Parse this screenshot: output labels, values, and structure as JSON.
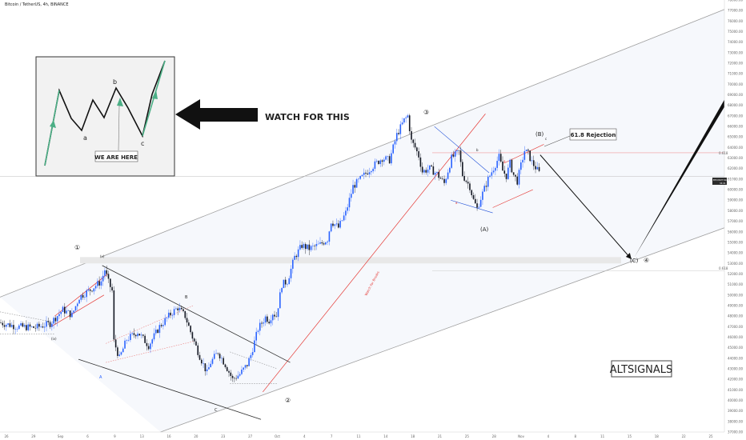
{
  "header": {
    "symbol_title": "Bitcoin / TetherUS, 4h, BINANCE"
  },
  "callout": {
    "text": "WATCH FOR THIS"
  },
  "inset": {
    "labels": {
      "a": "a",
      "b": "b",
      "c": "c"
    },
    "we_are_here": "WE ARE HERE"
  },
  "annotations": {
    "wave1": "①",
    "wave2": "②",
    "wave3": "③",
    "wave4": "④",
    "waveA_paren": "(A)",
    "waveB_paren": "(B)",
    "waveC_paren": "(C)",
    "rejection": "61.8 Rejection",
    "watch_for_breaks": "Watch for Breaks",
    "small_v": "(v)",
    "small_iv": "(iv)",
    "A": "A",
    "B": "B",
    "C": "C",
    "a_small": "a",
    "b_small": "b",
    "c_small": "c",
    "fib_top": "0.618",
    "fib_bottom": "0.618",
    "price_tag": "BTCUSDT  61274.99",
    "price_tag_sub": "34:41"
  },
  "watermark": {
    "text": "ALTSIGNALS"
  },
  "colors": {
    "up": "#2962ff",
    "down": "#131722",
    "channel": "#9e9e9e",
    "trend_red": "#e53935",
    "wedge": "#2c2c2c",
    "band": "#e8e8e8",
    "inset_green": "#4caf86",
    "fib": "#ef9a9a"
  },
  "chart_data": {
    "type": "candlestick",
    "title": "Bitcoin / TetherUS, 4h, BINANCE",
    "ylim": [
      37000,
      78000
    ],
    "y_ticks": [
      "78000.00",
      "77000.00",
      "76000.00",
      "75000.00",
      "74000.00",
      "73000.00",
      "72000.00",
      "71000.00",
      "70000.00",
      "69000.00",
      "68000.00",
      "67000.00",
      "66000.00",
      "65000.00",
      "64000.00",
      "63000.00",
      "62000.00",
      "61000.00",
      "60000.00",
      "59000.00",
      "58000.00",
      "57000.00",
      "56000.00",
      "55000.00",
      "54000.00",
      "53000.00",
      "52000.00",
      "51000.00",
      "50000.00",
      "49000.00",
      "48000.00",
      "47000.00",
      "46000.00",
      "45000.00",
      "44000.00",
      "43000.00",
      "42000.00",
      "41000.00",
      "40000.00",
      "39000.00",
      "38000.00",
      "37000.00"
    ],
    "x_ticks": [
      "26",
      "29",
      "Sep",
      "6",
      "9",
      "13",
      "16",
      "20",
      "23",
      "27",
      "Oct",
      "4",
      "7",
      "11",
      "14",
      "18",
      "21",
      "25",
      "28",
      "Nov",
      "4",
      "8",
      "11",
      "15",
      "18",
      "22",
      "25"
    ],
    "price_path": [
      [
        0,
        47400
      ],
      [
        10,
        47000
      ],
      [
        20,
        46900
      ],
      [
        28,
        47300
      ],
      [
        35,
        48600
      ],
      [
        40,
        48100
      ],
      [
        44,
        49800
      ],
      [
        50,
        50500
      ],
      [
        56,
        51300
      ],
      [
        58,
        52400
      ],
      [
        60,
        51200
      ],
      [
        62,
        50400
      ],
      [
        63,
        45600
      ],
      [
        66,
        44000
      ],
      [
        70,
        45800
      ],
      [
        76,
        46500
      ],
      [
        82,
        45200
      ],
      [
        88,
        47000
      ],
      [
        94,
        48200
      ],
      [
        98,
        48800
      ],
      [
        100,
        48400
      ],
      [
        102,
        48000
      ],
      [
        106,
        46000
      ],
      [
        110,
        44200
      ],
      [
        112,
        43400
      ],
      [
        114,
        42600
      ],
      [
        116,
        43600
      ],
      [
        120,
        44600
      ],
      [
        124,
        43400
      ],
      [
        128,
        42000
      ],
      [
        132,
        42500
      ],
      [
        136,
        43400
      ],
      [
        138,
        44300
      ],
      [
        142,
        46800
      ],
      [
        146,
        47900
      ],
      [
        148,
        47600
      ],
      [
        150,
        48300
      ],
      [
        152,
        48000
      ],
      [
        155,
        51000
      ],
      [
        158,
        51300
      ],
      [
        162,
        53600
      ],
      [
        166,
        54700
      ],
      [
        170,
        54400
      ],
      [
        176,
        54800
      ],
      [
        180,
        55300
      ],
      [
        182,
        57000
      ],
      [
        186,
        56400
      ],
      [
        190,
        57800
      ],
      [
        194,
        60300
      ],
      [
        198,
        61000
      ],
      [
        204,
        62100
      ],
      [
        210,
        63000
      ],
      [
        214,
        62800
      ],
      [
        218,
        65200
      ],
      [
        222,
        66600
      ],
      [
        224,
        67000
      ],
      [
        226,
        64600
      ],
      [
        228,
        64000
      ],
      [
        230,
        63200
      ],
      [
        232,
        61700
      ],
      [
        236,
        62000
      ],
      [
        240,
        61500
      ],
      [
        244,
        60600
      ],
      [
        248,
        63000
      ],
      [
        252,
        63600
      ],
      [
        254,
        61400
      ],
      [
        258,
        60300
      ],
      [
        260,
        59000
      ],
      [
        262,
        58200
      ],
      [
        264,
        59200
      ],
      [
        268,
        61000
      ],
      [
        272,
        62400
      ],
      [
        274,
        63100
      ],
      [
        276,
        61800
      ],
      [
        278,
        61300
      ],
      [
        280,
        62500
      ],
      [
        282,
        61400
      ],
      [
        284,
        60800
      ],
      [
        286,
        62300
      ],
      [
        288,
        63700
      ],
      [
        290,
        63400
      ],
      [
        292,
        62600
      ],
      [
        294,
        62100
      ],
      [
        296,
        61600
      ]
    ],
    "channel": {
      "upper": [
        [
          0,
          49800
        ],
        [
          410,
          78000
        ]
      ],
      "lower": [
        [
          88,
          37000
        ],
        [
          410,
          57200
        ]
      ]
    },
    "projection": [
      [
        296,
        63300
      ],
      [
        346,
        53400
      ],
      [
        404,
        73700
      ]
    ],
    "resistance_zone": [
      53000,
      53600
    ],
    "fib_levels": [
      63500,
      52300
    ],
    "last_price": 61274.99
  }
}
